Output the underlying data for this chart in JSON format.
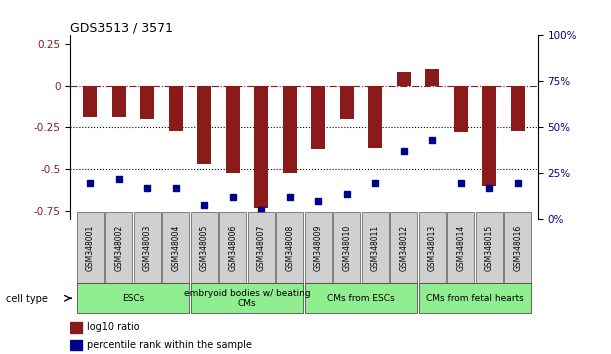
{
  "title": "GDS3513 / 3571",
  "samples": [
    "GSM348001",
    "GSM348002",
    "GSM348003",
    "GSM348004",
    "GSM348005",
    "GSM348006",
    "GSM348007",
    "GSM348008",
    "GSM348009",
    "GSM348010",
    "GSM348011",
    "GSM348012",
    "GSM348013",
    "GSM348014",
    "GSM348015",
    "GSM348016"
  ],
  "log10_ratio": [
    -0.19,
    -0.19,
    -0.2,
    -0.27,
    -0.47,
    -0.52,
    -0.73,
    -0.52,
    -0.38,
    -0.2,
    -0.37,
    0.08,
    0.1,
    -0.28,
    -0.6,
    -0.27
  ],
  "percentile_rank": [
    20,
    22,
    17,
    17,
    8,
    12,
    5,
    12,
    10,
    14,
    20,
    37,
    43,
    20,
    17,
    20
  ],
  "cell_type_groups": [
    {
      "label": "ESCs",
      "start": 0,
      "end": 3,
      "color": "#90ee90"
    },
    {
      "label": "embryoid bodies w/ beating\nCMs",
      "start": 4,
      "end": 7,
      "color": "#90ee90"
    },
    {
      "label": "CMs from ESCs",
      "start": 8,
      "end": 11,
      "color": "#90ee90"
    },
    {
      "label": "CMs from fetal hearts",
      "start": 12,
      "end": 15,
      "color": "#90ee90"
    }
  ],
  "bar_color": "#8b1a1a",
  "dot_color": "#00008b",
  "ylim_left": [
    -0.8,
    0.3
  ],
  "ylim_right": [
    0,
    100
  ],
  "yticks_left": [
    -0.75,
    -0.5,
    -0.25,
    0,
    0.25
  ],
  "yticks_right": [
    0,
    25,
    50,
    75,
    100
  ],
  "dotted_lines": [
    -0.25,
    -0.5
  ],
  "legend_red": "log10 ratio",
  "legend_blue": "percentile rank within the sample",
  "cell_type_label": "cell type"
}
